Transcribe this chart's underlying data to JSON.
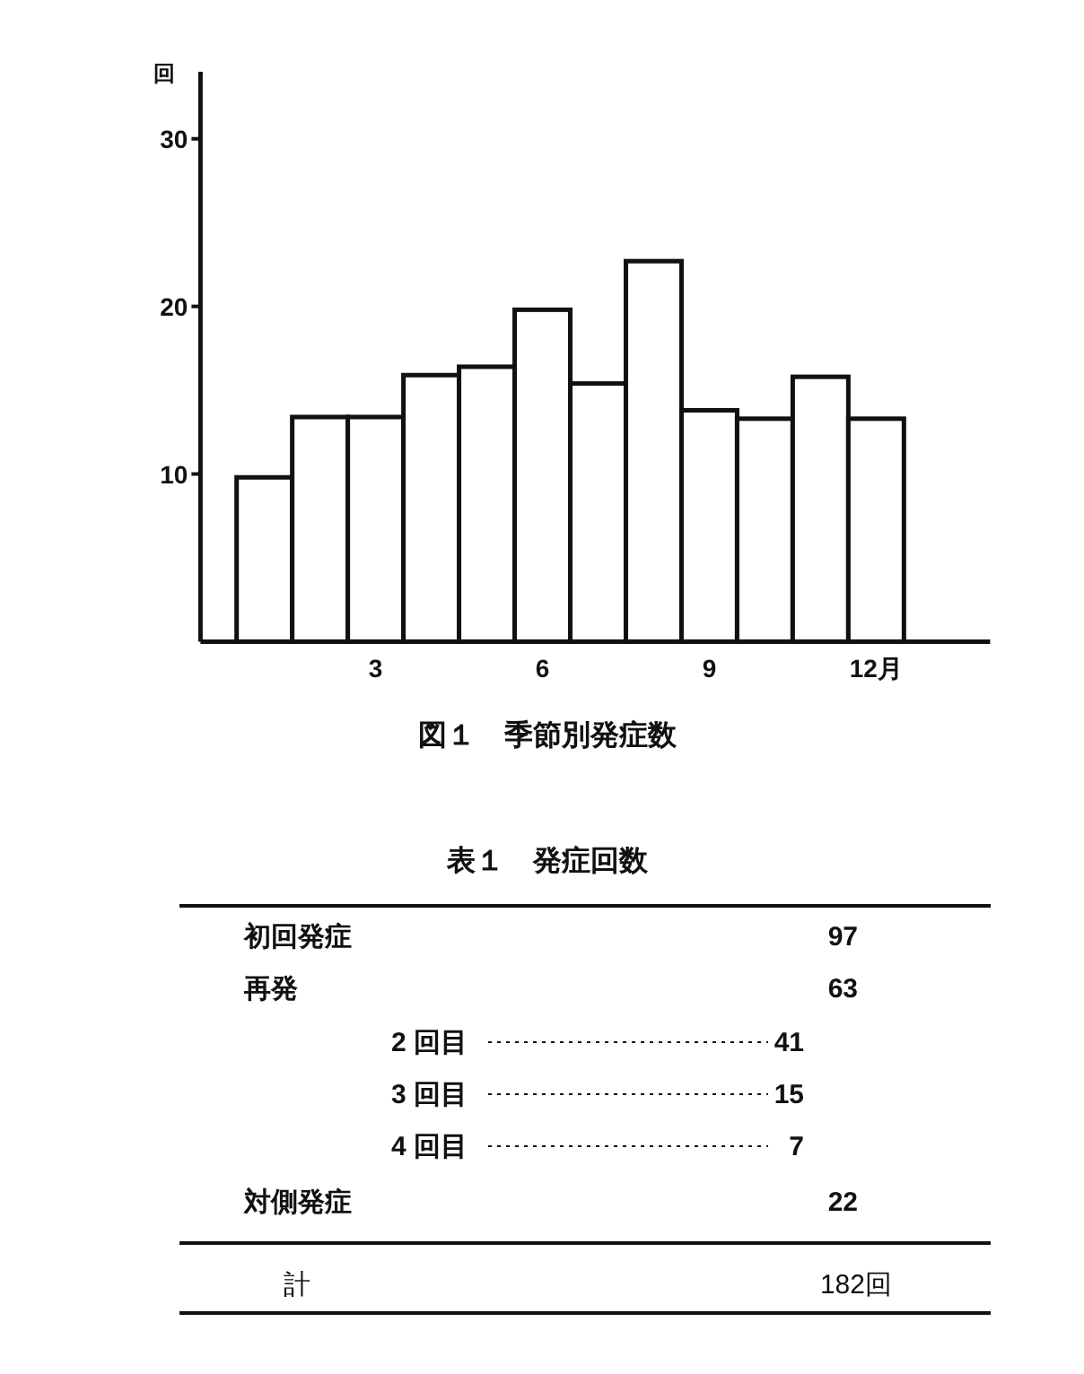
{
  "chart_data": [
    {
      "type": "bar",
      "title": "図１　季節別発症数",
      "ylabel": "回",
      "color": "#ffffff",
      "x": [
        1,
        2,
        3,
        4,
        5,
        6,
        7,
        8,
        9,
        10,
        11,
        12
      ],
      "values": [
        9.8,
        13.4,
        13.4,
        15.9,
        16.4,
        19.8,
        15.4,
        22.7,
        13.8,
        13.3,
        15.8,
        13.3
      ],
      "xlim": [
        -0.15,
        14.05
      ],
      "xticks": [
        3,
        6,
        9,
        {
          "value": 12,
          "label": "12月"
        }
      ],
      "ylim": [
        0,
        34
      ],
      "yticks": [
        10,
        20,
        30
      ]
    },
    {
      "type": "other",
      "title": "表１　発症回数",
      "categories": [
        "初回発症",
        "再発",
        "2 回目",
        "3 回目",
        "4 回目",
        "対側発症",
        "計"
      ],
      "value_labels": [
        "97",
        "63",
        "41",
        "15",
        "7",
        "22",
        "182回"
      ]
    }
  ]
}
